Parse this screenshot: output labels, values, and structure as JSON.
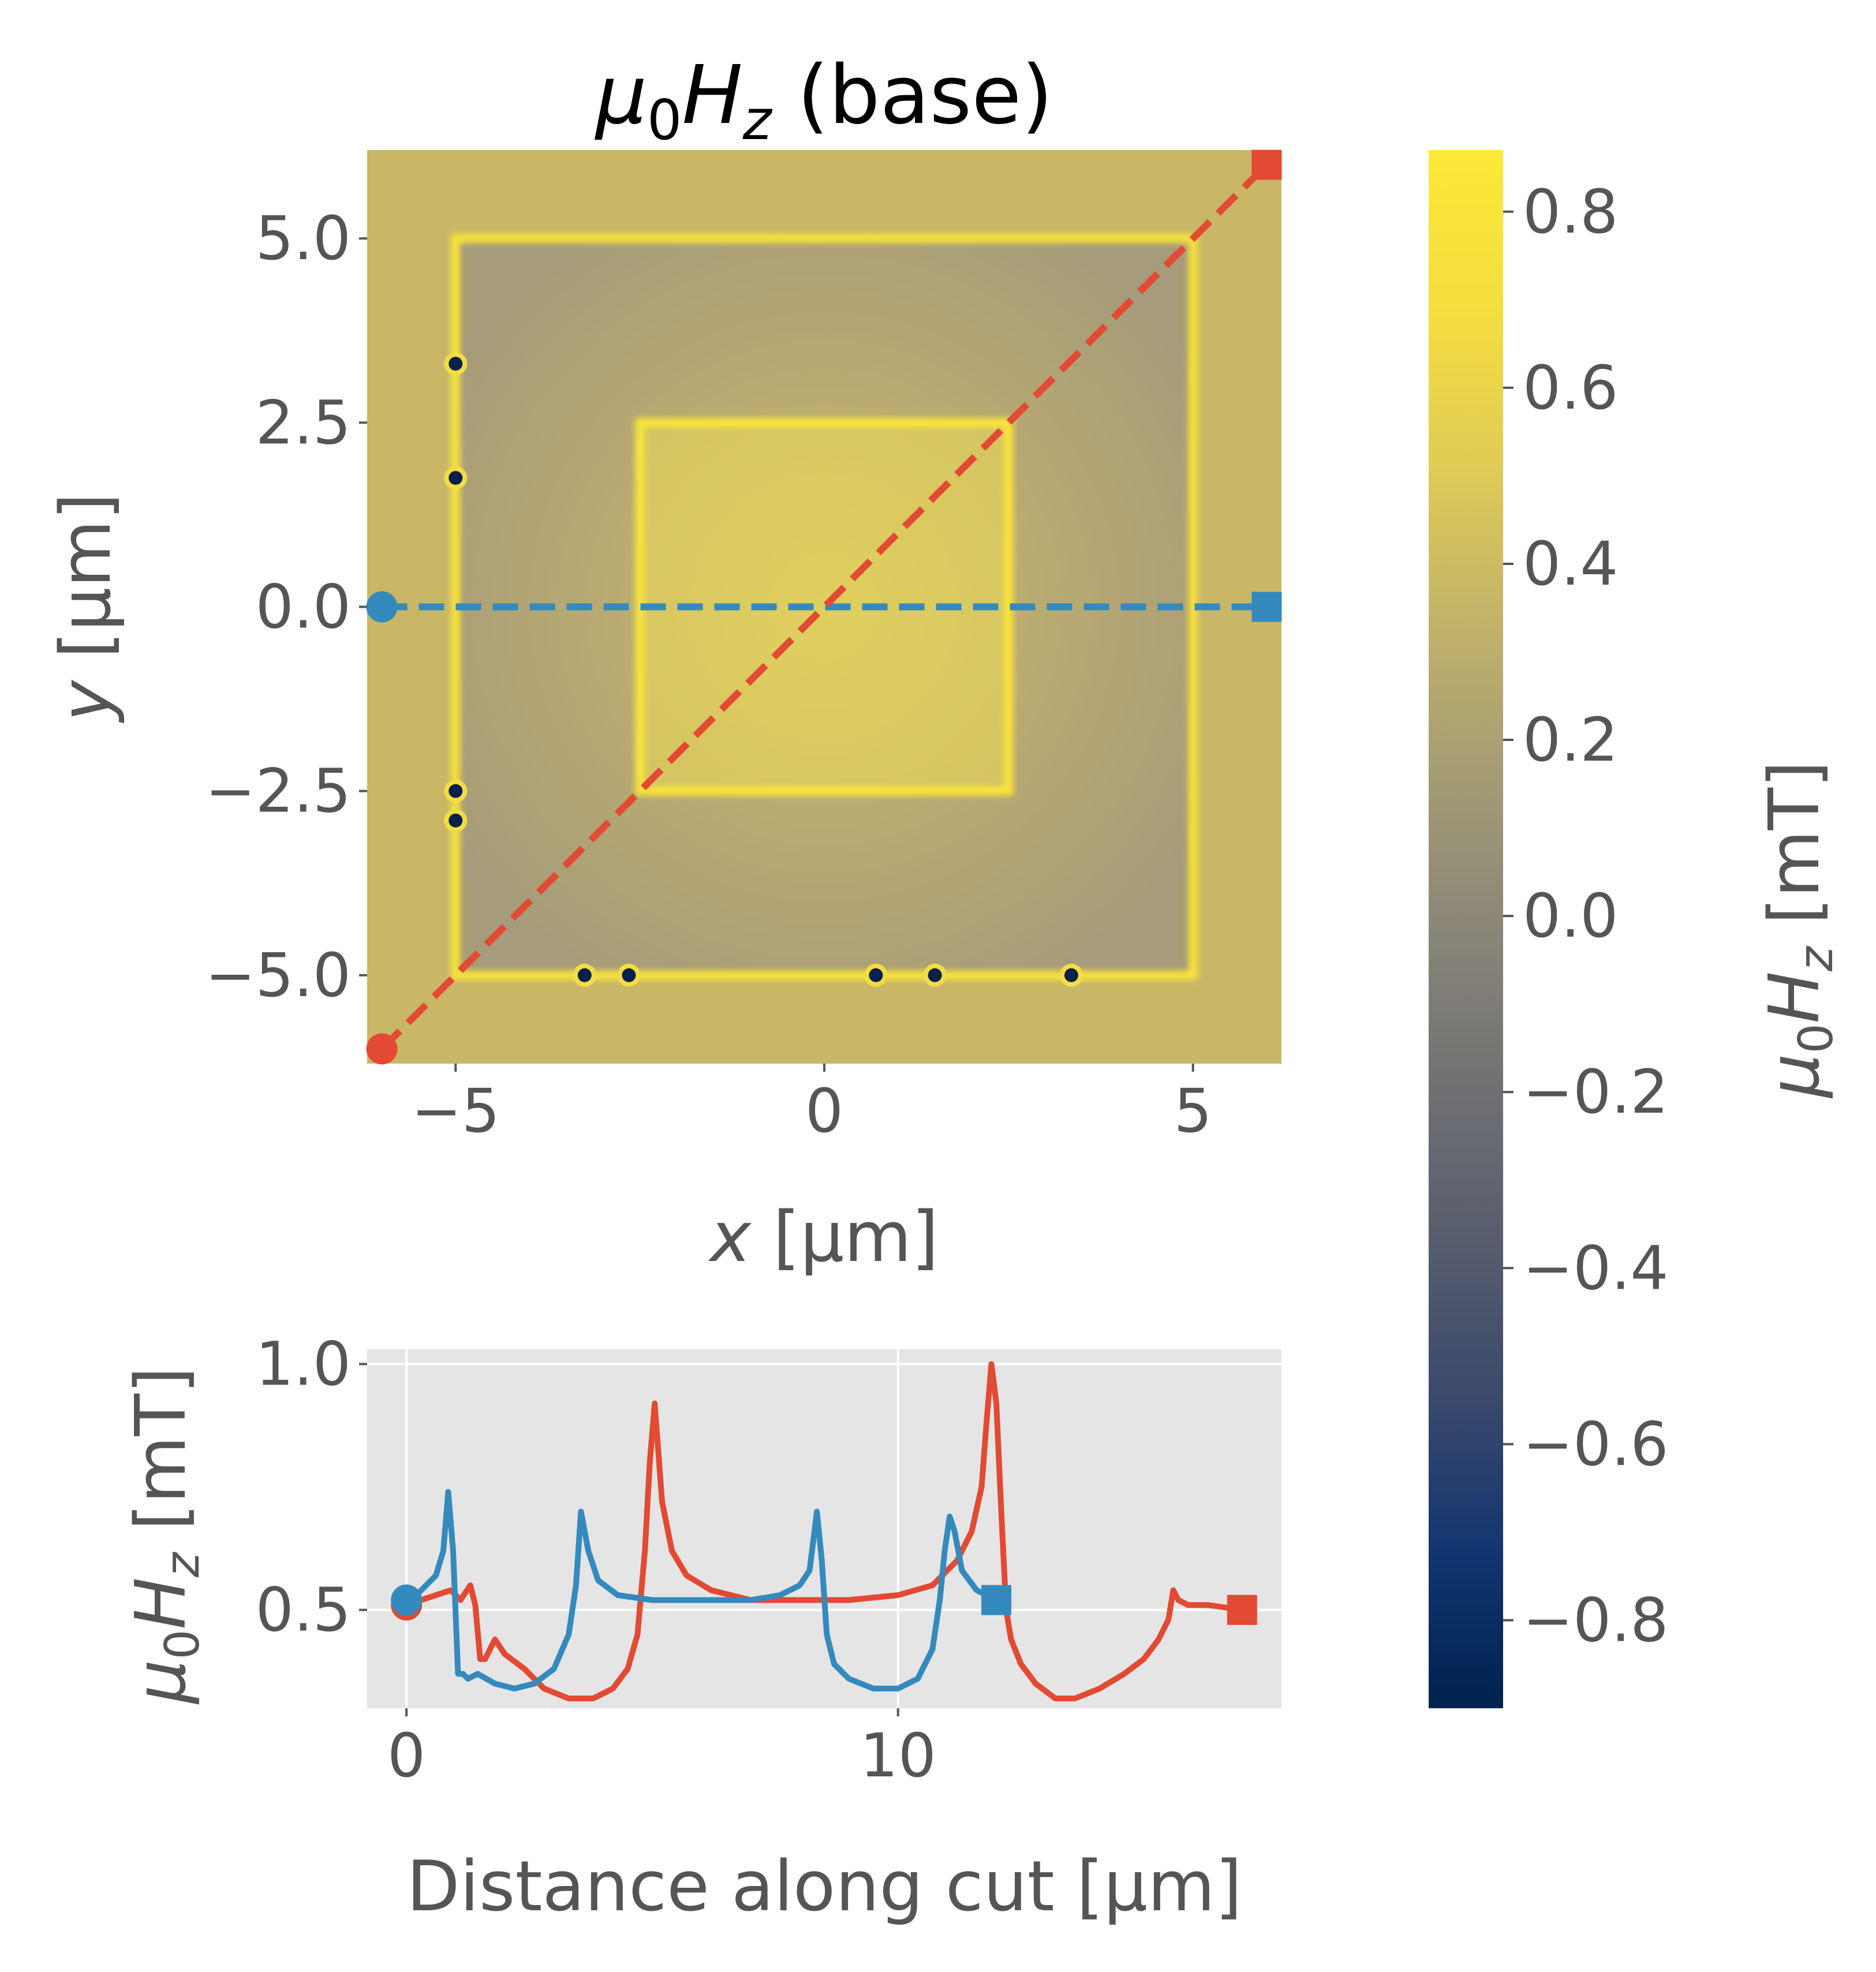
{
  "title": {
    "sym": "μ",
    "sub": "0",
    "H": "H",
    "z": "z",
    "rest": " (base)"
  },
  "heatmap": {
    "xlabel_var": "x",
    "xlabel_unit": " [μm]",
    "ylabel_var": "y",
    "ylabel_unit": " [μm]",
    "xlim": [
      -6.2,
      6.2
    ],
    "ylim": [
      -6.2,
      6.2
    ],
    "xticks": [
      -5,
      0,
      5
    ],
    "xtick_labels": [
      "−5",
      "0",
      "5"
    ],
    "yticks": [
      5.0,
      2.5,
      0.0,
      -2.5,
      -5.0
    ],
    "ytick_labels": [
      "5.0",
      "2.5",
      "0.0",
      "−2.5",
      "−5.0"
    ],
    "outer_square_half_width": 5.0,
    "inner_square_half_width": 2.5,
    "background_value": 0.5,
    "dark_spots": [
      {
        "x": -5.0,
        "y": 3.3
      },
      {
        "x": -5.0,
        "y": 1.75
      },
      {
        "x": -5.0,
        "y": -2.5
      },
      {
        "x": -5.0,
        "y": -2.9
      },
      {
        "x": -3.25,
        "y": -5.0
      },
      {
        "x": -2.65,
        "y": -5.0
      },
      {
        "x": 0.7,
        "y": -5.0
      },
      {
        "x": 1.5,
        "y": -5.0
      },
      {
        "x": 3.35,
        "y": -5.0
      }
    ],
    "cuts": [
      {
        "name": "horizontal",
        "color": "#348ABD",
        "start": [
          -6.0,
          0.0
        ],
        "end": [
          6.0,
          0.0
        ]
      },
      {
        "name": "diagonal",
        "color": "#E24A33",
        "start": [
          -6.0,
          -6.0
        ],
        "end": [
          6.0,
          6.0
        ]
      }
    ]
  },
  "colorbar": {
    "label_sym": "μ",
    "label_sub": "0",
    "label_H": "H",
    "label_z": "z",
    "label_unit": " [mT]",
    "range": [
      -0.9,
      0.87
    ],
    "ticks": [
      0.8,
      0.6,
      0.4,
      0.2,
      0.0,
      -0.2,
      -0.4,
      -0.6,
      -0.8
    ],
    "tick_labels": [
      "0.8",
      "0.6",
      "0.4",
      "0.2",
      "0.0",
      "−0.2",
      "−0.4",
      "−0.6",
      "−0.8"
    ],
    "colormap": "cividis"
  },
  "chart_data": {
    "type": "line",
    "xlabel": "Distance along cut [μm]",
    "ylabel_sym": "μ",
    "ylabel_sub": "0",
    "ylabel_H": "H",
    "ylabel_z": "z",
    "ylabel_unit": " [mT]",
    "xlim": [
      -0.8,
      17.8
    ],
    "ylim": [
      0.3,
      1.03
    ],
    "xticks": [
      0,
      10
    ],
    "xtick_labels": [
      "0",
      "10"
    ],
    "yticks": [
      1.0,
      0.5
    ],
    "ytick_labels": [
      "1.0",
      "0.5"
    ],
    "grid": true,
    "series": [
      {
        "color": "#E24A33",
        "x": [
          0,
          0.3,
          0.6,
          0.9,
          1.1,
          1.3,
          1.4,
          1.5,
          1.6,
          1.7,
          1.8,
          2.0,
          2.4,
          2.8,
          3.3,
          3.8,
          4.2,
          4.5,
          4.7,
          4.85,
          4.95,
          5.05,
          5.2,
          5.4,
          5.7,
          6.2,
          7.0,
          8.0,
          9.0,
          10.0,
          10.7,
          11.2,
          11.5,
          11.7,
          11.8,
          11.9,
          12.0,
          12.1,
          12.2,
          12.3,
          12.5,
          12.8,
          13.2,
          13.6,
          14.1,
          14.6,
          15.0,
          15.3,
          15.5,
          15.6,
          15.7,
          15.9,
          16.3,
          17.0
        ],
        "y": [
          0.51,
          0.52,
          0.53,
          0.54,
          0.52,
          0.55,
          0.51,
          0.4,
          0.4,
          0.42,
          0.44,
          0.41,
          0.38,
          0.34,
          0.32,
          0.32,
          0.34,
          0.38,
          0.45,
          0.62,
          0.8,
          0.92,
          0.72,
          0.62,
          0.57,
          0.54,
          0.52,
          0.52,
          0.52,
          0.53,
          0.55,
          0.6,
          0.66,
          0.75,
          0.88,
          1.0,
          0.92,
          0.7,
          0.5,
          0.44,
          0.39,
          0.35,
          0.32,
          0.32,
          0.34,
          0.37,
          0.4,
          0.44,
          0.48,
          0.54,
          0.52,
          0.51,
          0.51,
          0.5
        ]
      },
      {
        "color": "#348ABD",
        "x": [
          0,
          0.2,
          0.4,
          0.6,
          0.75,
          0.85,
          0.95,
          1.05,
          1.15,
          1.25,
          1.45,
          1.8,
          2.2,
          2.6,
          3.0,
          3.3,
          3.45,
          3.55,
          3.7,
          3.9,
          4.3,
          5.0,
          6.0,
          7.0,
          7.6,
          8.0,
          8.2,
          8.35,
          8.45,
          8.55,
          8.7,
          9.0,
          9.5,
          10.0,
          10.4,
          10.7,
          10.85,
          10.95,
          11.05,
          11.15,
          11.3,
          11.6,
          12.0
        ],
        "y": [
          0.52,
          0.53,
          0.55,
          0.57,
          0.62,
          0.74,
          0.62,
          0.37,
          0.37,
          0.36,
          0.37,
          0.35,
          0.34,
          0.35,
          0.38,
          0.45,
          0.55,
          0.7,
          0.62,
          0.56,
          0.53,
          0.52,
          0.52,
          0.52,
          0.53,
          0.55,
          0.58,
          0.7,
          0.6,
          0.45,
          0.39,
          0.36,
          0.34,
          0.34,
          0.36,
          0.42,
          0.52,
          0.62,
          0.69,
          0.66,
          0.58,
          0.54,
          0.52
        ]
      }
    ]
  }
}
